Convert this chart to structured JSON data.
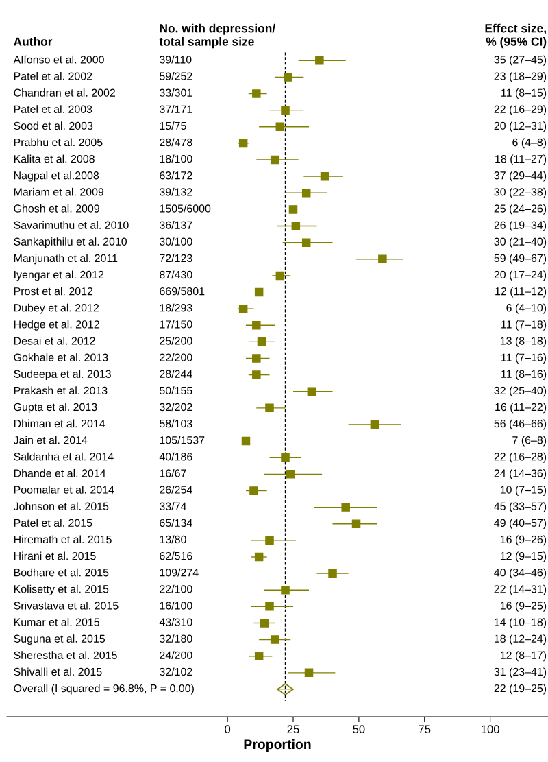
{
  "chart_data": {
    "type": "scatter",
    "orientation": "horizontal",
    "xlabel": "Proportion",
    "categories": [
      "Affonso et al. 2000",
      "Patel et al. 2002",
      "Chandran et al. 2002",
      "Patel et al. 2003",
      "Sood et al. 2003",
      "Prabhu et al. 2005",
      "Kalita et al. 2008",
      "Nagpal et al.2008",
      "Mariam et al. 2009",
      "Ghosh et al. 2009",
      "Savarimuthu et al. 2010",
      "Sankapithilu et al. 2010",
      "Manjunath et al. 2011",
      "Iyengar et al. 2012",
      "Prost et al. 2012",
      "Dubey et al. 2012",
      "Hedge et al. 2012",
      "Desai et al. 2012",
      "Gokhale et al. 2013",
      "Sudeepa et al. 2013",
      "Prakash et al. 2013",
      "Gupta et al. 2013",
      "Dhiman et al. 2014",
      "Jain et al. 2014",
      "Saldanha et al. 2014",
      "Dhande et al. 2014",
      "Poomalar et al. 2014",
      "Johnson et al. 2015",
      "Patel et al. 2015",
      "Hiremath et al. 2015",
      "Hirani et al. 2015",
      "Bodhare et al. 2015",
      "Kolisetty et al. 2015",
      "Srivastava et al. 2015",
      "Kumar et al. 2015",
      "Suguna et al. 2015",
      "Sherestha et al. 2015",
      "Shivalli et al. 2015",
      "Overall (I squared = 96.8%, P = 0.00)"
    ],
    "series": [
      {
        "marker": "square",
        "color": "#7f7f00",
        "values": [
          35,
          23,
          11,
          22,
          20,
          6,
          18,
          37,
          30,
          25,
          26,
          30,
          59,
          20,
          12,
          6,
          11,
          13,
          11,
          11,
          32,
          16,
          56,
          7,
          22,
          24,
          10,
          45,
          49,
          16,
          12,
          40,
          22,
          16,
          14,
          18,
          12,
          31,
          null
        ],
        "errors": [
          [
            27,
            45
          ],
          [
            18,
            29
          ],
          [
            8,
            15
          ],
          [
            16,
            29
          ],
          [
            12,
            31
          ],
          [
            4,
            8
          ],
          [
            11,
            27
          ],
          [
            29,
            44
          ],
          [
            22,
            38
          ],
          [
            24,
            26
          ],
          [
            19,
            34
          ],
          [
            21,
            40
          ],
          [
            49,
            67
          ],
          [
            17,
            24
          ],
          [
            11,
            12
          ],
          [
            4,
            10
          ],
          [
            7,
            18
          ],
          [
            8,
            18
          ],
          [
            7,
            16
          ],
          [
            8,
            16
          ],
          [
            25,
            40
          ],
          [
            11,
            22
          ],
          [
            46,
            66
          ],
          [
            6,
            8
          ],
          [
            16,
            28
          ],
          [
            14,
            36
          ],
          [
            7,
            15
          ],
          [
            33,
            57
          ],
          [
            40,
            57
          ],
          [
            9,
            26
          ],
          [
            9,
            15
          ],
          [
            34,
            46
          ],
          [
            14,
            31
          ],
          [
            9,
            25
          ],
          [
            10,
            18
          ],
          [
            12,
            24
          ],
          [
            8,
            17
          ],
          [
            23,
            41
          ],
          null
        ]
      },
      {
        "marker": "diamond",
        "color": "#7f7f00",
        "values": [
          null,
          null,
          null,
          null,
          null,
          null,
          null,
          null,
          null,
          null,
          null,
          null,
          null,
          null,
          null,
          null,
          null,
          null,
          null,
          null,
          null,
          null,
          null,
          null,
          null,
          null,
          null,
          null,
          null,
          null,
          null,
          null,
          null,
          null,
          null,
          null,
          null,
          null,
          22
        ],
        "errors": [
          null,
          null,
          null,
          null,
          null,
          null,
          null,
          null,
          null,
          null,
          null,
          null,
          null,
          null,
          null,
          null,
          null,
          null,
          null,
          null,
          null,
          null,
          null,
          null,
          null,
          null,
          null,
          null,
          null,
          null,
          null,
          null,
          null,
          null,
          null,
          null,
          null,
          null,
          [
            19,
            25
          ]
        ]
      }
    ],
    "xlim": [
      -84,
      122
    ],
    "xticks": [
      0,
      25,
      50,
      75,
      100
    ],
    "ref_lines": [
      {
        "axis": "x",
        "value": 22,
        "color": "#000000",
        "line_style": "dashed"
      }
    ],
    "annotations": [
      "Author",
      "No. with depression/\ntotal sample size",
      "Effect size,\n% (95% CI)",
      "39/110",
      "59/252",
      "33/301",
      "37/171",
      "15/75",
      "28/478",
      "18/100",
      "63/172",
      "39/132",
      "1505/6000",
      "36/137",
      "30/100",
      "72/123",
      "87/430",
      "669/5801",
      "18/293",
      "17/150",
      "25/200",
      "22/200",
      "28/244",
      "50/155",
      "32/202",
      "58/103",
      "105/1537",
      "40/186",
      "16/67",
      "26/254",
      "33/74",
      "65/134",
      "13/80",
      "62/516",
      "109/274",
      "22/100",
      "16/100",
      "43/310",
      "32/180",
      "24/200",
      "32/102",
      "35 (27–45)",
      "23 (18–29)",
      "11 (8–15)",
      "22 (16–29)",
      "20 (12–31)",
      "6 (4–8)",
      "18 (11–27)",
      "37 (29–44)",
      "30 (22–38)",
      "25 (24–26)",
      "26 (19–34)",
      "30 (21–40)",
      "59 (49–67)",
      "20 (17–24)",
      "12 (11–12)",
      "6 (4–10)",
      "11 (7–18)",
      "13 (8–18)",
      "11 (7–16)",
      "11 (8–16)",
      "32 (25–40)",
      "16 (11–22)",
      "56 (46–66)",
      "7 (6–8)",
      "22 (16–28)",
      "24 (14–36)",
      "10 (7–15)",
      "45 (33–57)",
      "49 (40–57)",
      "16 (9–26)",
      "12 (9–15)",
      "40 (34–46)",
      "22 (14–31)",
      "16 (9–25)",
      "14 (10–18)",
      "18 (12–24)",
      "12 (8–17)",
      "31 (23–41)",
      "22 (19–25)"
    ]
  }
}
